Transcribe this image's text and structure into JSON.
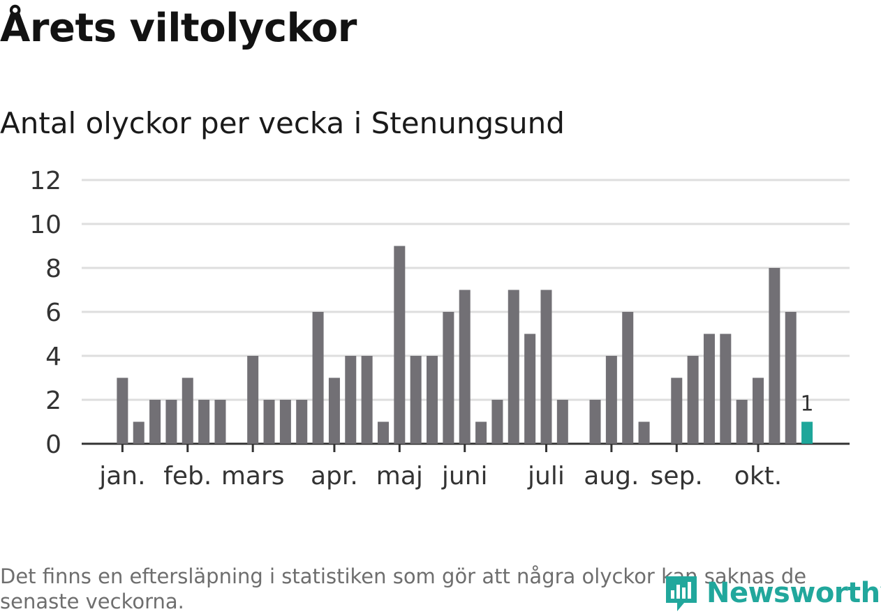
{
  "chart_data": {
    "type": "bar",
    "title": "Årets viltolyckor",
    "subtitle": "Antal olyckor per vecka i Stenungsund",
    "xlabel": "",
    "ylabel": "",
    "ylim": [
      0,
      12
    ],
    "yticks": [
      0,
      2,
      4,
      6,
      8,
      10,
      12
    ],
    "grid": true,
    "values": [
      0,
      0,
      3,
      1,
      2,
      2,
      3,
      2,
      2,
      0,
      4,
      2,
      2,
      2,
      6,
      3,
      4,
      4,
      1,
      9,
      4,
      4,
      6,
      7,
      1,
      2,
      7,
      5,
      7,
      2,
      0,
      2,
      4,
      6,
      1,
      0,
      3,
      4,
      5,
      5,
      2,
      3,
      8,
      6,
      1
    ],
    "month_ticks": [
      {
        "label": "jan.",
        "week": 3
      },
      {
        "label": "feb.",
        "week": 7
      },
      {
        "label": "mars",
        "week": 11
      },
      {
        "label": "apr.",
        "week": 16
      },
      {
        "label": "maj",
        "week": 20
      },
      {
        "label": "juni",
        "week": 24
      },
      {
        "label": "juli",
        "week": 29
      },
      {
        "label": "aug.",
        "week": 33
      },
      {
        "label": "sep.",
        "week": 37
      },
      {
        "label": "okt.",
        "week": 42
      }
    ],
    "highlight": {
      "week": 45,
      "value": 1,
      "label": "1"
    },
    "colors": {
      "bar": "#727075",
      "highlight": "#1ea69a",
      "grid": "#dedede",
      "axis": "#333333"
    }
  },
  "footnote": "Det finns en eftersläpning i statistiken som gör att några olyckor kan saknas de senaste veckorna.",
  "brand": {
    "name": "Newsworthy",
    "icon": "newsworthy-logo-icon",
    "color": "#21a79c"
  }
}
